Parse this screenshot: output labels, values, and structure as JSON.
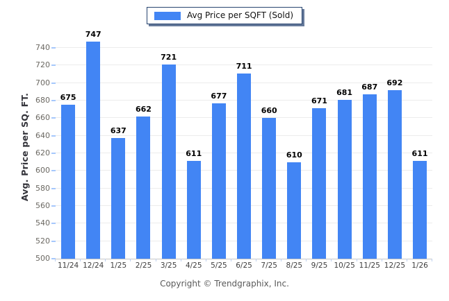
{
  "legend": {
    "label": "Avg Price per SQFT (Sold)",
    "swatch_color": "#4285f4"
  },
  "footer": "Copyright © Trendgraphix, Inc.",
  "chart_data": {
    "type": "bar",
    "title": "",
    "xlabel": "",
    "ylabel": "Avg. Price per SQ. FT.",
    "categories": [
      "11/24",
      "12/24",
      "1/25",
      "2/25",
      "3/25",
      "4/25",
      "5/25",
      "6/25",
      "7/25",
      "8/25",
      "9/25",
      "10/25",
      "11/25",
      "12/25",
      "1/26"
    ],
    "series": [
      {
        "name": "Avg Price per SQFT (Sold)",
        "color": "#4285f4",
        "values": [
          675,
          747,
          637,
          662,
          721,
          611,
          677,
          711,
          660,
          610,
          671,
          681,
          687,
          692,
          611
        ]
      }
    ],
    "ylim": [
      500,
      755
    ],
    "yticks": [
      500,
      520,
      540,
      560,
      580,
      600,
      620,
      640,
      660,
      680,
      700,
      720,
      740
    ],
    "grid": true,
    "value_labels": true,
    "legend_position": "top-center"
  }
}
